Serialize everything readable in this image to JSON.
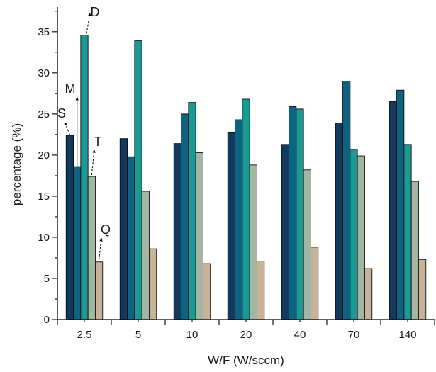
{
  "chart_data": {
    "type": "bar",
    "xlabel": "W/F (W/sccm)",
    "ylabel": "percentage (%)",
    "ylim": [
      0,
      38
    ],
    "yticks": [
      0,
      5,
      10,
      15,
      20,
      25,
      30,
      35
    ],
    "categories": [
      "2.5",
      "5",
      "10",
      "20",
      "40",
      "70",
      "140"
    ],
    "series": [
      {
        "name": "S",
        "color": "#123a5e",
        "values": [
          22.4,
          22.0,
          21.4,
          22.8,
          21.3,
          23.9,
          26.5
        ]
      },
      {
        "name": "M",
        "color": "#0e6383",
        "values": [
          18.6,
          19.8,
          25.0,
          24.3,
          25.9,
          29.0,
          27.9
        ]
      },
      {
        "name": "D",
        "color": "#1a9a92",
        "values": [
          34.6,
          33.9,
          26.4,
          26.8,
          25.6,
          20.7,
          21.3
        ]
      },
      {
        "name": "T",
        "color": "#a2b6a2",
        "values": [
          17.4,
          15.6,
          20.3,
          18.8,
          18.2,
          19.9,
          16.8
        ]
      },
      {
        "name": "Q",
        "color": "#c8b39a",
        "values": [
          7.0,
          8.6,
          6.8,
          7.1,
          8.8,
          6.2,
          7.3
        ]
      }
    ],
    "grid": false,
    "legend": "none"
  }
}
